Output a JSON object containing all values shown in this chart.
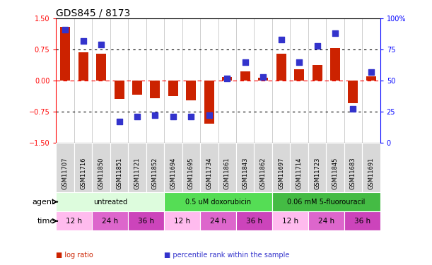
{
  "title": "GDS845 / 8173",
  "samples": [
    "GSM11707",
    "GSM11716",
    "GSM11850",
    "GSM11851",
    "GSM11721",
    "GSM11852",
    "GSM11694",
    "GSM11695",
    "GSM11734",
    "GSM11861",
    "GSM11843",
    "GSM11862",
    "GSM11697",
    "GSM11714",
    "GSM11723",
    "GSM11845",
    "GSM11683",
    "GSM11691"
  ],
  "log_ratio": [
    1.3,
    0.68,
    0.65,
    -0.45,
    -0.35,
    -0.42,
    -0.37,
    -0.48,
    -1.05,
    0.08,
    0.22,
    0.07,
    0.65,
    0.28,
    0.38,
    0.78,
    -0.55,
    0.1
  ],
  "percentile": [
    91,
    82,
    79,
    17,
    21,
    22,
    21,
    21,
    22,
    52,
    65,
    53,
    83,
    65,
    78,
    88,
    27,
    57
  ],
  "bar_color": "#cc2200",
  "dot_color": "#3333cc",
  "ylim_left": [
    -1.5,
    1.5
  ],
  "ylim_right": [
    0,
    100
  ],
  "yticks_left": [
    -1.5,
    -0.75,
    0,
    0.75,
    1.5
  ],
  "yticks_right": [
    0,
    25,
    50,
    75,
    100
  ],
  "agents": [
    {
      "label": "untreated",
      "start": 0,
      "end": 6,
      "color": "#ddfcdd"
    },
    {
      "label": "0.5 uM doxorubicin",
      "start": 6,
      "end": 12,
      "color": "#55dd55"
    },
    {
      "label": "0.06 mM 5-fluorouracil",
      "start": 12,
      "end": 18,
      "color": "#44bb44"
    }
  ],
  "times": [
    {
      "label": "12 h",
      "start": 0,
      "end": 2,
      "color": "#ffbbee"
    },
    {
      "label": "24 h",
      "start": 2,
      "end": 4,
      "color": "#dd66cc"
    },
    {
      "label": "36 h",
      "start": 4,
      "end": 6,
      "color": "#cc44bb"
    },
    {
      "label": "12 h",
      "start": 6,
      "end": 8,
      "color": "#ffbbee"
    },
    {
      "label": "24 h",
      "start": 8,
      "end": 10,
      "color": "#dd66cc"
    },
    {
      "label": "36 h",
      "start": 10,
      "end": 12,
      "color": "#cc44bb"
    },
    {
      "label": "12 h",
      "start": 12,
      "end": 14,
      "color": "#ffbbee"
    },
    {
      "label": "24 h",
      "start": 14,
      "end": 16,
      "color": "#dd66cc"
    },
    {
      "label": "36 h",
      "start": 16,
      "end": 18,
      "color": "#cc44bb"
    }
  ],
  "legend_items": [
    {
      "label": " log ratio",
      "color": "#cc2200"
    },
    {
      "label": " percentile rank within the sample",
      "color": "#3333cc"
    }
  ],
  "bg_color": "#ffffff",
  "label_agent": "agent",
  "label_time": "time",
  "title_fontsize": 10,
  "tick_fontsize": 7,
  "sample_fontsize": 6,
  "bar_width": 0.55
}
